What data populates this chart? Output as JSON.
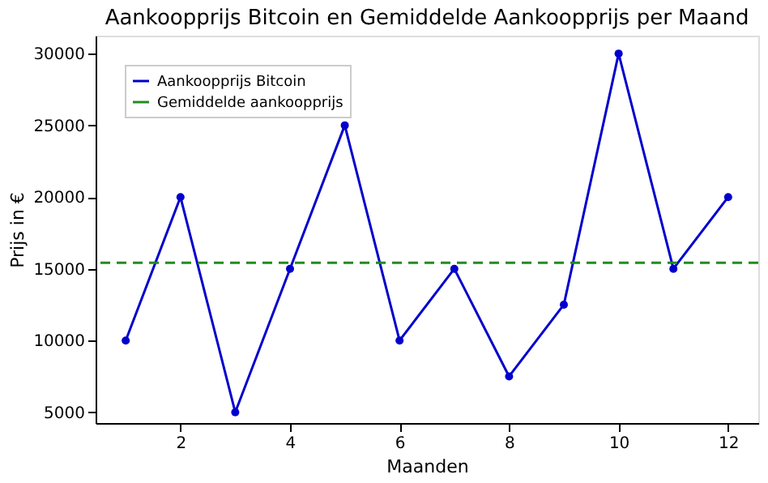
{
  "chart_data": {
    "type": "line",
    "title": "Aankoopprijs Bitcoin en Gemiddelde Aankoopprijs per Maand",
    "xlabel": "Maanden",
    "ylabel": "Prijs in €",
    "x": [
      1,
      2,
      3,
      4,
      5,
      6,
      7,
      8,
      9,
      10,
      11,
      12
    ],
    "series": [
      {
        "name": "Aankoopprijs Bitcoin",
        "color": "#0000cc",
        "values": [
          10000,
          20000,
          5000,
          15000,
          25000,
          10000,
          15000,
          7500,
          12500,
          30000,
          15000,
          20000
        ]
      }
    ],
    "ref_lines": [
      {
        "axis": "y",
        "value": 15417,
        "label": "Gemiddelde aankoopprijs",
        "color": "#228b22",
        "line_style": "dashed"
      }
    ],
    "xlim": [
      0.45,
      12.55
    ],
    "ylim": [
      4250,
      31250
    ],
    "xticks": [
      2,
      4,
      6,
      8,
      10,
      12
    ],
    "yticks": [
      5000,
      10000,
      15000,
      20000,
      25000,
      30000
    ],
    "marker": "circle",
    "line_style": "solid",
    "grid": false,
    "legend": "top left"
  }
}
